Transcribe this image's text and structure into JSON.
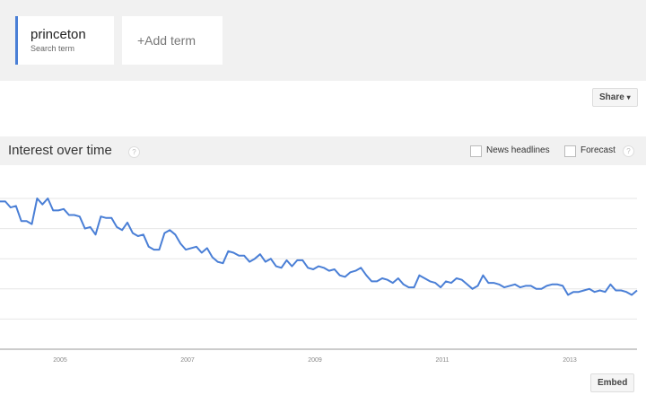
{
  "search": {
    "term": "princeton",
    "term_sub": "Search term",
    "add_label": "+Add term",
    "accent": "#4a7fd6"
  },
  "share_label": "Share",
  "section": {
    "title": "Interest over time",
    "help": "?",
    "news_label": "News headlines",
    "forecast_label": "Forecast",
    "forecast_help": "?"
  },
  "embed_label": "Embed",
  "chart_data": {
    "type": "line",
    "title": "",
    "xlabel": "",
    "ylabel": "",
    "ylim": [
      0,
      100
    ],
    "grid": true,
    "x_start": "2004-01",
    "x_step": "month",
    "x_ticks": [
      "2005",
      "2007",
      "2009",
      "2011",
      "2013"
    ],
    "series_color": "#4a7fd6",
    "values": [
      98,
      98,
      94,
      95,
      85,
      85,
      83,
      100,
      96,
      100,
      92,
      92,
      93,
      89,
      89,
      88,
      80,
      81,
      76,
      88,
      87,
      87,
      81,
      79,
      84,
      77,
      75,
      76,
      68,
      66,
      66,
      77,
      79,
      76,
      70,
      66,
      67,
      68,
      64,
      67,
      61,
      58,
      57,
      65,
      64,
      62,
      62,
      58,
      60,
      63,
      58,
      60,
      55,
      54,
      59,
      55,
      59,
      59,
      54,
      53,
      55,
      54,
      52,
      53,
      49,
      48,
      51,
      52,
      54,
      49,
      45,
      45,
      47,
      46,
      44,
      47,
      43,
      41,
      41,
      49,
      47,
      45,
      44,
      41,
      45,
      44,
      47,
      46,
      43,
      40,
      42,
      49,
      44,
      44,
      43,
      41,
      42,
      43,
      41,
      42,
      42,
      40,
      40,
      42,
      43,
      43,
      42,
      36,
      38,
      38,
      39,
      40,
      38,
      39,
      38,
      43,
      39,
      39,
      38,
      36,
      39
    ]
  }
}
